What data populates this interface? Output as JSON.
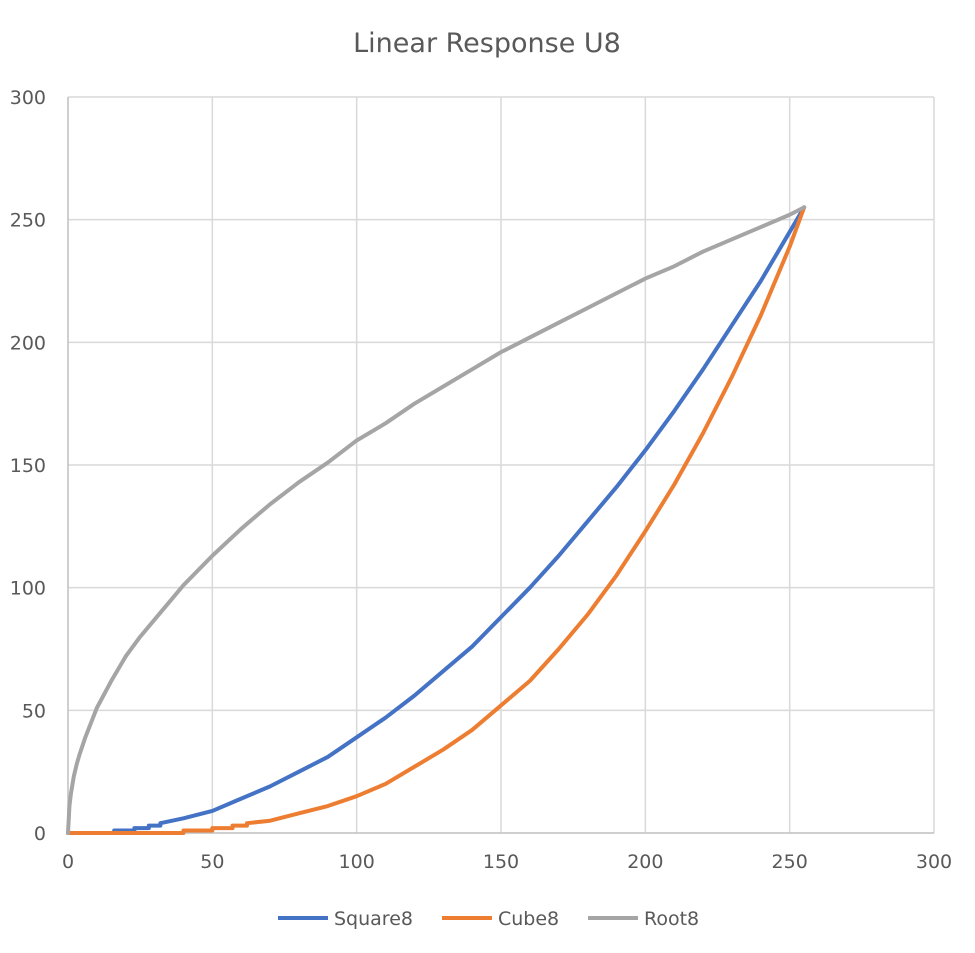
{
  "chart_data": {
    "type": "line",
    "title": "Linear Response U8",
    "xlabel": "",
    "ylabel": "",
    "xlim": [
      0,
      300
    ],
    "ylim": [
      0,
      300
    ],
    "x_ticks": [
      0,
      50,
      100,
      150,
      200,
      250,
      300
    ],
    "y_ticks": [
      0,
      50,
      100,
      150,
      200,
      250,
      300
    ],
    "grid": true,
    "legend": "bottom",
    "series": [
      {
        "name": "Square8",
        "color": "#4472c4",
        "points": [
          [
            0,
            0
          ],
          [
            16,
            0
          ],
          [
            16,
            1
          ],
          [
            23,
            1
          ],
          [
            23,
            2
          ],
          [
            28,
            2
          ],
          [
            28,
            3
          ],
          [
            32,
            3
          ],
          [
            32,
            4
          ],
          [
            40,
            6
          ],
          [
            50,
            9
          ],
          [
            60,
            14
          ],
          [
            70,
            19
          ],
          [
            80,
            25
          ],
          [
            90,
            31
          ],
          [
            100,
            39
          ],
          [
            110,
            47
          ],
          [
            120,
            56
          ],
          [
            130,
            66
          ],
          [
            140,
            76
          ],
          [
            150,
            88
          ],
          [
            160,
            100
          ],
          [
            170,
            113
          ],
          [
            180,
            127
          ],
          [
            190,
            141
          ],
          [
            200,
            156
          ],
          [
            210,
            172
          ],
          [
            220,
            189
          ],
          [
            230,
            207
          ],
          [
            240,
            225
          ],
          [
            250,
            245
          ],
          [
            255,
            255
          ]
        ]
      },
      {
        "name": "Cube8",
        "color": "#ed7d31",
        "points": [
          [
            0,
            0
          ],
          [
            40,
            0
          ],
          [
            40,
            1
          ],
          [
            50,
            1
          ],
          [
            50,
            2
          ],
          [
            57,
            2
          ],
          [
            57,
            3
          ],
          [
            62,
            3
          ],
          [
            62,
            4
          ],
          [
            70,
            5
          ],
          [
            80,
            8
          ],
          [
            90,
            11
          ],
          [
            100,
            15
          ],
          [
            110,
            20
          ],
          [
            120,
            27
          ],
          [
            130,
            34
          ],
          [
            140,
            42
          ],
          [
            150,
            52
          ],
          [
            160,
            62
          ],
          [
            170,
            75
          ],
          [
            180,
            89
          ],
          [
            190,
            105
          ],
          [
            200,
            123
          ],
          [
            210,
            142
          ],
          [
            220,
            163
          ],
          [
            230,
            186
          ],
          [
            240,
            211
          ],
          [
            250,
            239
          ],
          [
            255,
            255
          ]
        ]
      },
      {
        "name": "Root8",
        "color": "#a5a5a5",
        "points": [
          [
            0,
            0
          ],
          [
            0.5,
            11
          ],
          [
            1,
            16
          ],
          [
            2,
            23
          ],
          [
            3,
            28
          ],
          [
            4,
            32
          ],
          [
            6,
            39
          ],
          [
            8,
            45
          ],
          [
            10,
            51
          ],
          [
            15,
            62
          ],
          [
            20,
            72
          ],
          [
            25,
            80
          ],
          [
            30,
            87
          ],
          [
            40,
            101
          ],
          [
            50,
            113
          ],
          [
            60,
            124
          ],
          [
            70,
            134
          ],
          [
            80,
            143
          ],
          [
            90,
            151
          ],
          [
            100,
            160
          ],
          [
            110,
            167
          ],
          [
            120,
            175
          ],
          [
            130,
            182
          ],
          [
            140,
            189
          ],
          [
            150,
            196
          ],
          [
            160,
            202
          ],
          [
            170,
            208
          ],
          [
            180,
            214
          ],
          [
            190,
            220
          ],
          [
            200,
            226
          ],
          [
            210,
            231
          ],
          [
            220,
            237
          ],
          [
            230,
            242
          ],
          [
            240,
            247
          ],
          [
            250,
            252
          ],
          [
            255,
            255
          ]
        ]
      }
    ]
  }
}
